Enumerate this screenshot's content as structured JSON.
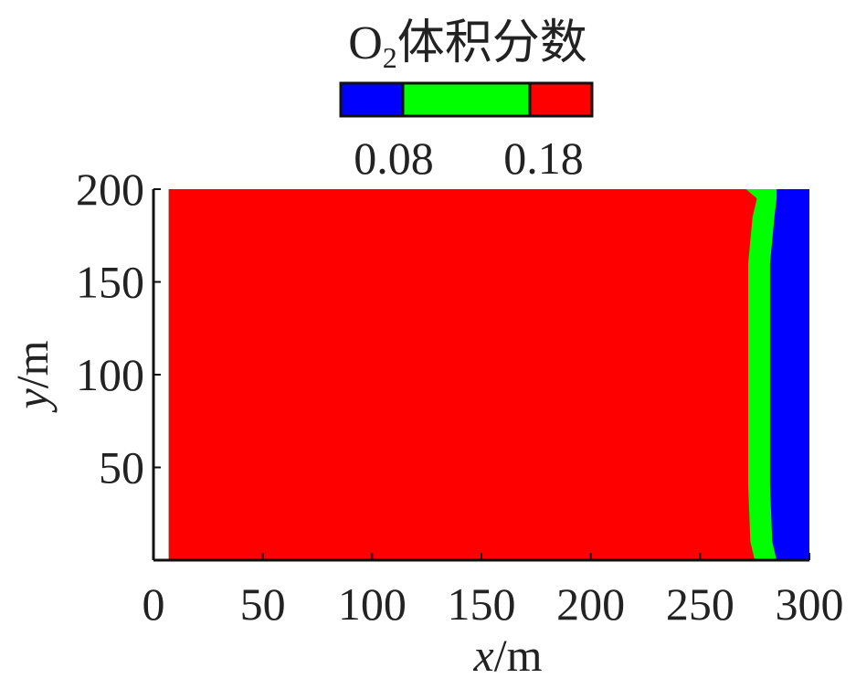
{
  "chart_data": {
    "type": "heatmap",
    "title_main": "O",
    "title_sub": "2",
    "title_rest": "体积分数",
    "colorbar": {
      "bins": [
        {
          "name": "low",
          "color": "#0000ff"
        },
        {
          "name": "mid",
          "color": "#00ff00"
        },
        {
          "name": "high",
          "color": "#ff0000"
        }
      ],
      "thresholds": [
        "0.08",
        "0.18"
      ]
    },
    "xlabel_var": "x",
    "xlabel_unit": "/m",
    "ylabel_var": "y",
    "ylabel_unit": "/m",
    "xlim": [
      0,
      300
    ],
    "ylim": [
      0,
      200
    ],
    "xticks": [
      0,
      50,
      100,
      150,
      200,
      250,
      300
    ],
    "yticks": [
      50,
      100,
      150,
      200
    ],
    "domain_x_start": 7,
    "domain_x_end": 300,
    "front": [
      {
        "y": 0,
        "red_end": 275,
        "green_end": 285
      },
      {
        "y": 10,
        "red_end": 273,
        "green_end": 283
      },
      {
        "y": 40,
        "red_end": 272,
        "green_end": 282
      },
      {
        "y": 100,
        "red_end": 272,
        "green_end": 282
      },
      {
        "y": 160,
        "red_end": 272,
        "green_end": 282
      },
      {
        "y": 185,
        "red_end": 274,
        "green_end": 284
      },
      {
        "y": 195,
        "red_end": 276,
        "green_end": 285
      },
      {
        "y": 200,
        "red_end": 271,
        "green_end": 285
      }
    ]
  }
}
